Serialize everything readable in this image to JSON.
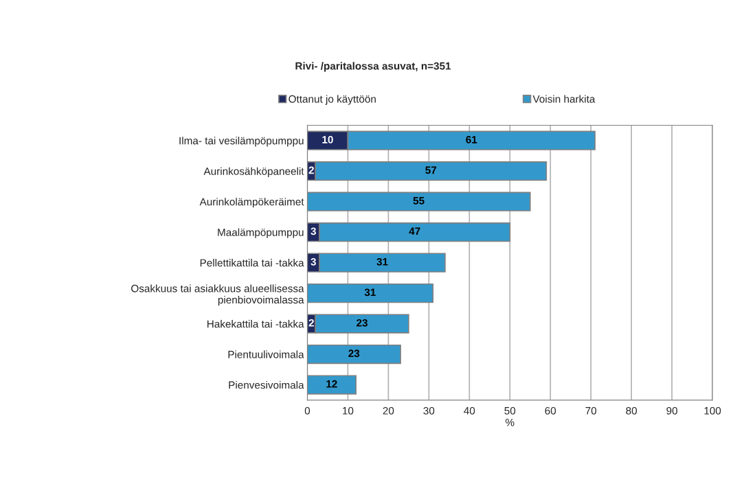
{
  "chart_data": {
    "type": "bar",
    "orientation": "horizontal",
    "stacked": true,
    "title": "Rivi- /paritalossa asuvat, n=351",
    "xlabel": "%",
    "categories": [
      "Ilma- tai vesilämpöpumppu",
      "Aurinkosähköpaneelit",
      "Aurinkolämpökeräimet",
      "Maalämpöpumppu",
      "Pellettikattila tai -takka",
      "Osakkuus tai asiakkuus alueellisessa\npienbiovoimalassa",
      "Hakekattila tai -takka",
      "Pientuulivoimala",
      "Pienvesivoimala"
    ],
    "series": [
      {
        "name": "Ottanut jo käyttöön",
        "color": "#1f2a60",
        "values": [
          10,
          2,
          0,
          3,
          3,
          0,
          2,
          0,
          0
        ],
        "value_labels": [
          "10",
          "2",
          null,
          "3",
          "3",
          null,
          "2",
          null,
          null
        ]
      },
      {
        "name": "Voisin harkita",
        "color": "#3399cc",
        "values": [
          61,
          57,
          55,
          47,
          31,
          31,
          23,
          23,
          12
        ],
        "value_labels": [
          "61",
          "57",
          "55",
          "47",
          "31",
          "31",
          "23",
          "23",
          "12"
        ]
      }
    ],
    "xlim": [
      0,
      100
    ],
    "xticks": [
      0,
      10,
      20,
      30,
      40,
      50,
      60,
      70,
      80,
      90,
      100
    ],
    "grid": "x",
    "legend": "top"
  }
}
